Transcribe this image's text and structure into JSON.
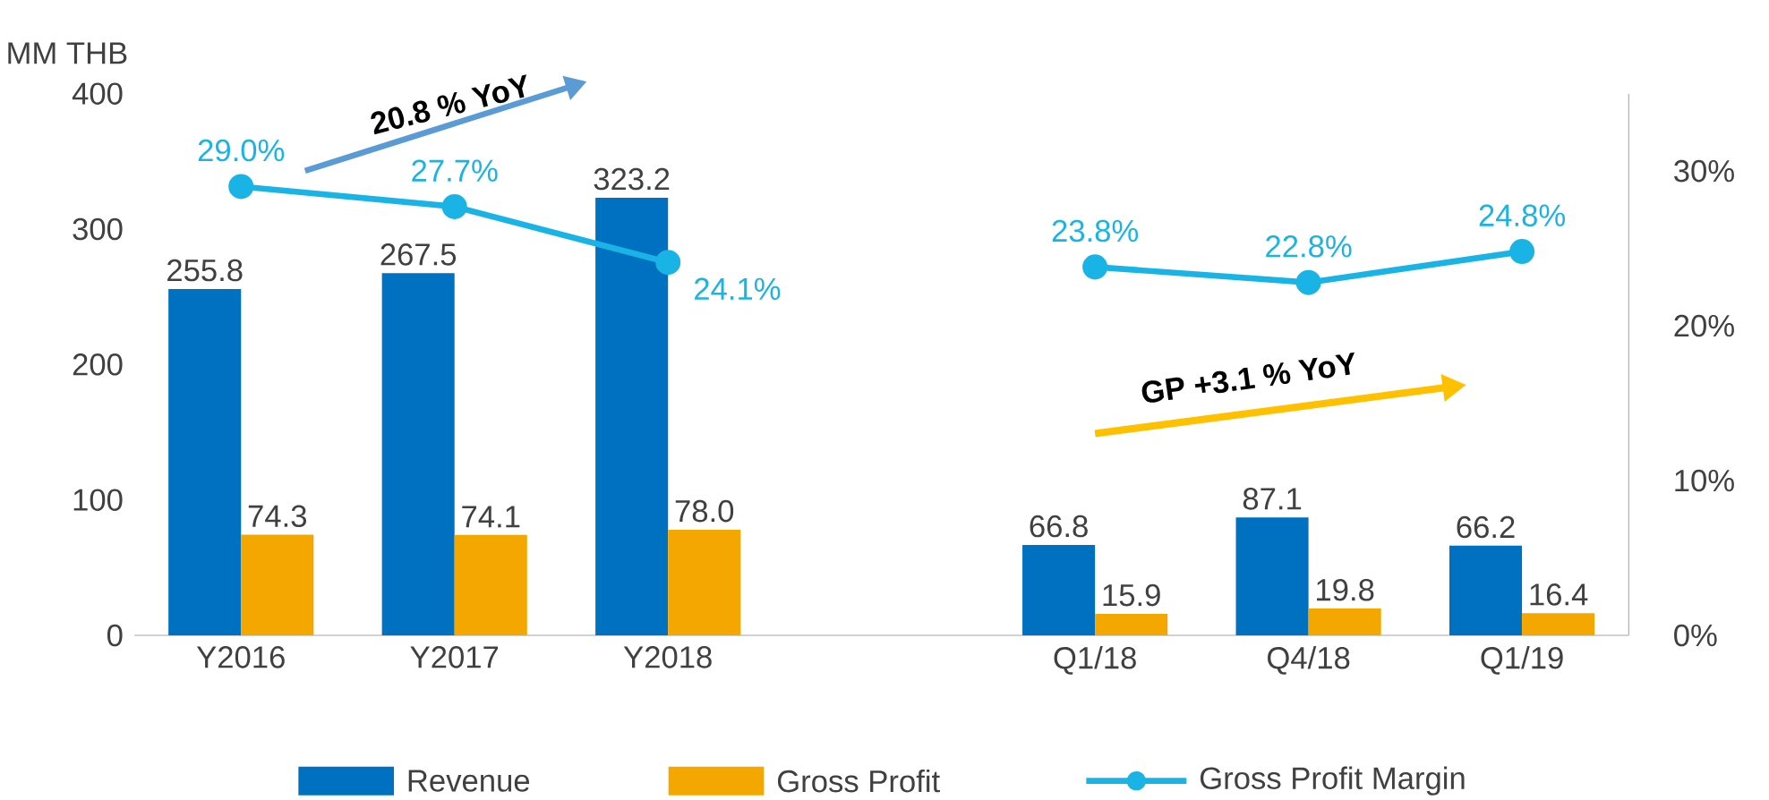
{
  "chart_data": {
    "type": "bar",
    "ylabel": "MM THB",
    "categories": [
      "Y2016",
      "Y2017",
      "Y2018",
      null,
      "Q1/18",
      "Q4/18",
      "Q1/19"
    ],
    "series": [
      {
        "name": "Revenue",
        "color": "#0070c0",
        "values": [
          255.8,
          267.5,
          323.2,
          null,
          66.8,
          87.1,
          66.2
        ],
        "value_labels": [
          "255.8",
          "267.5",
          "323.2",
          null,
          "66.8",
          "87.1",
          "66.2"
        ]
      },
      {
        "name": "Gross Profit",
        "color": "#f4a700",
        "values": [
          74.3,
          74.1,
          78.0,
          null,
          15.9,
          19.8,
          16.4
        ],
        "value_labels": [
          "74.3",
          "74.1",
          "78.0",
          null,
          "15.9",
          "19.8",
          "16.4"
        ]
      },
      {
        "name": "Gross Profit Margin",
        "type": "line",
        "axis": "y2",
        "color": "#1ab3e6",
        "marker": "circle",
        "values": [
          29.0,
          27.7,
          24.1,
          null,
          23.8,
          22.8,
          24.8
        ],
        "value_labels": [
          "29.0%",
          "27.7%",
          "24.1%",
          null,
          "23.8%",
          "22.8%",
          "24.8%"
        ]
      }
    ],
    "ylim": [
      0,
      400
    ],
    "yticks": [
      0,
      100,
      200,
      300,
      400
    ],
    "y2lim": [
      0,
      35
    ],
    "y2ticks": [
      {
        "value": 0,
        "label": "0%"
      },
      {
        "value": 10,
        "label": "10%"
      },
      {
        "value": 20,
        "label": "20%"
      },
      {
        "value": 30,
        "label": "30%"
      }
    ],
    "legend": "bottom",
    "grid": false,
    "annotations": [
      "20.8 % YoY",
      "GP +3.1 % YoY"
    ]
  }
}
